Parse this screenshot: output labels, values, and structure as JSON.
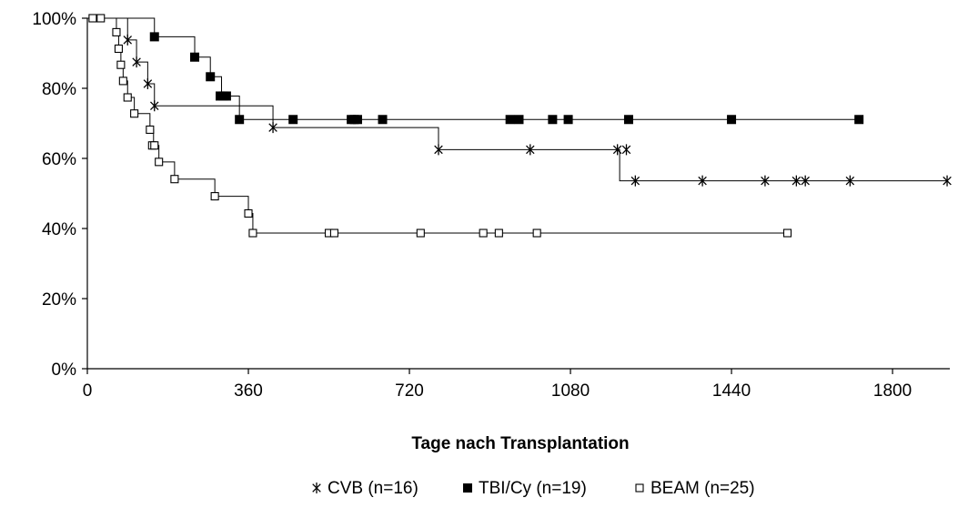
{
  "chart_data": {
    "type": "line",
    "step": true,
    "title": "",
    "xlabel": "Tage nach Transplantation",
    "ylabel": "",
    "xlim": [
      0,
      1928
    ],
    "ylim": [
      0,
      100
    ],
    "grid": false,
    "legend_position": "bottom",
    "x_ticks": [
      0,
      360,
      720,
      1080,
      1440,
      1800
    ],
    "x_tick_labels": [
      "0",
      "360",
      "720",
      "1080",
      "1440",
      "1800"
    ],
    "y_ticks": [
      0,
      20,
      40,
      60,
      80,
      100
    ],
    "y_tick_labels": [
      "0%",
      "20%",
      "40%",
      "60%",
      "80%",
      "100%"
    ],
    "series": [
      {
        "name": "CVB (n=16)",
        "legend_label": "CVB (n=16)",
        "marker": "asterisk",
        "color": "#000000",
        "steps": [
          [
            0,
            100
          ],
          [
            90,
            93.8
          ],
          [
            110,
            87.5
          ],
          [
            135,
            81.3
          ],
          [
            150,
            75
          ],
          [
            415,
            68.8
          ],
          [
            785,
            62.5
          ],
          [
            1190,
            53.6
          ]
        ],
        "end_x": 1922,
        "censored": [
          [
            90,
            93.8
          ],
          [
            110,
            87.5
          ],
          [
            135,
            81.3
          ],
          [
            150,
            75
          ],
          [
            415,
            68.8
          ],
          [
            785,
            62.5
          ],
          [
            990,
            62.5
          ],
          [
            1185,
            62.5
          ],
          [
            1205,
            62.5
          ],
          [
            1225,
            53.6
          ],
          [
            1375,
            53.6
          ],
          [
            1515,
            53.6
          ],
          [
            1585,
            53.6
          ],
          [
            1605,
            53.6
          ],
          [
            1705,
            53.6
          ],
          [
            1922,
            53.6
          ]
        ]
      },
      {
        "name": "TBI/Cy (n=19)",
        "legend_label": "TBI/Cy (n=19)",
        "marker": "filled-square",
        "color": "#000000",
        "steps": [
          [
            0,
            100
          ],
          [
            150,
            94.7
          ],
          [
            240,
            88.9
          ],
          [
            275,
            83.3
          ],
          [
            300,
            77.8
          ],
          [
            340,
            71.1
          ]
        ],
        "end_x": 1725,
        "censored": [
          [
            150,
            94.7
          ],
          [
            240,
            88.9
          ],
          [
            275,
            83.3
          ],
          [
            297,
            77.8
          ],
          [
            304,
            77.8
          ],
          [
            311,
            77.8
          ],
          [
            340,
            71.1
          ],
          [
            460,
            71.1
          ],
          [
            590,
            71.1
          ],
          [
            597,
            71.1
          ],
          [
            604,
            71.1
          ],
          [
            660,
            71.1
          ],
          [
            945,
            71.1
          ],
          [
            965,
            71.1
          ],
          [
            1040,
            71.1
          ],
          [
            1075,
            71.1
          ],
          [
            1210,
            71.1
          ],
          [
            1440,
            71.1
          ],
          [
            1725,
            71.1
          ]
        ]
      },
      {
        "name": "BEAM (n=25)",
        "legend_label": "BEAM (n=25)",
        "marker": "open-square",
        "color": "#000000",
        "steps": [
          [
            0,
            100
          ],
          [
            65,
            96
          ],
          [
            70,
            91.3
          ],
          [
            75,
            86.7
          ],
          [
            80,
            82.1
          ],
          [
            90,
            77.4
          ],
          [
            105,
            72.8
          ],
          [
            140,
            68.2
          ],
          [
            148,
            63.7
          ],
          [
            160,
            59
          ],
          [
            195,
            54.1
          ],
          [
            285,
            49.2
          ],
          [
            360,
            44.3
          ],
          [
            370,
            38.7
          ]
        ],
        "end_x": 1565,
        "censored": [
          [
            12,
            100
          ],
          [
            30,
            100
          ],
          [
            65,
            96
          ],
          [
            70,
            91.3
          ],
          [
            75,
            86.7
          ],
          [
            80,
            82.1
          ],
          [
            90,
            77.4
          ],
          [
            105,
            72.8
          ],
          [
            140,
            68.2
          ],
          [
            145,
            63.7
          ],
          [
            150,
            63.7
          ],
          [
            160,
            59
          ],
          [
            195,
            54.1
          ],
          [
            285,
            49.2
          ],
          [
            360,
            44.3
          ],
          [
            370,
            38.7
          ],
          [
            540,
            38.7
          ],
          [
            552,
            38.7
          ],
          [
            745,
            38.7
          ],
          [
            885,
            38.7
          ],
          [
            920,
            38.7
          ],
          [
            1005,
            38.7
          ],
          [
            1565,
            38.7
          ]
        ]
      }
    ]
  }
}
